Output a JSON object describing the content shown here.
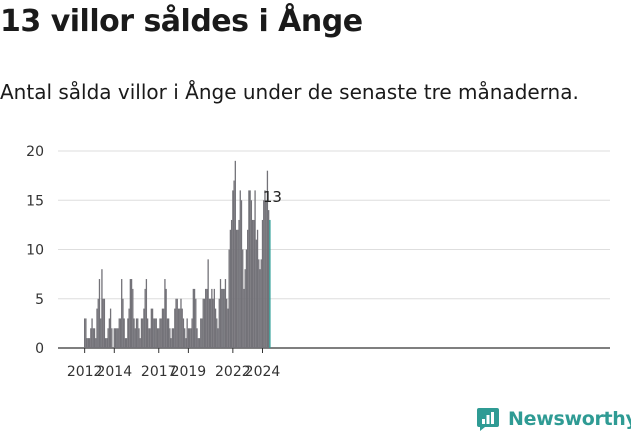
{
  "header": {
    "title": "13 villor såldes i Ånge",
    "subtitle": "Antal sålda villor i Ånge under de senaste tre månaderna."
  },
  "brand": {
    "name": "Newsworthy",
    "icon": "newsworthy-logo-icon"
  },
  "colors": {
    "bar": "#737278",
    "highlight": "#2a9d96",
    "grid": "#dedede",
    "axis": "#333333",
    "brand": "#2f9b94"
  },
  "chart_data": {
    "type": "bar",
    "title": "13 villor såldes i Ånge",
    "subtitle": "Antal sålda villor i Ånge under de senaste tre månaderna.",
    "xlabel": "",
    "ylabel": "",
    "ylim": [
      0,
      20
    ],
    "yticks": [
      0,
      5,
      10,
      15,
      20
    ],
    "xticks": [
      {
        "label": "2012",
        "month": "2012-01"
      },
      {
        "label": "2014",
        "month": "2014-01"
      },
      {
        "label": "2017",
        "month": "2017-01"
      },
      {
        "label": "2019",
        "month": "2019-01"
      },
      {
        "label": "2022",
        "month": "2022-01"
      },
      {
        "label": "2024",
        "month": "2024-01"
      }
    ],
    "grid": true,
    "legend": "none",
    "start_month": "2012-01",
    "values": [
      3,
      3,
      1,
      1,
      1,
      2,
      3,
      2,
      2,
      1,
      4,
      5,
      7,
      3,
      8,
      5,
      5,
      1,
      1,
      2,
      3,
      4,
      2,
      0,
      2,
      2,
      2,
      2,
      3,
      3,
      7,
      5,
      3,
      1,
      1,
      3,
      4,
      7,
      7,
      6,
      3,
      2,
      3,
      3,
      2,
      1,
      3,
      3,
      4,
      6,
      7,
      3,
      2,
      2,
      4,
      4,
      3,
      3,
      3,
      2,
      2,
      3,
      3,
      4,
      4,
      7,
      6,
      3,
      3,
      2,
      1,
      2,
      2,
      4,
      5,
      5,
      4,
      4,
      5,
      4,
      3,
      2,
      1,
      3,
      2,
      2,
      2,
      3,
      6,
      6,
      5,
      2,
      1,
      1,
      3,
      3,
      5,
      5,
      6,
      6,
      9,
      5,
      5,
      6,
      5,
      6,
      4,
      3,
      2,
      5,
      7,
      6,
      6,
      6,
      7,
      5,
      4,
      10,
      12,
      13,
      16,
      17,
      19,
      12,
      12,
      13,
      16,
      15,
      10,
      6,
      8,
      10,
      12,
      16,
      16,
      15,
      13,
      13,
      16,
      11,
      12,
      9,
      8,
      9,
      13,
      15,
      16,
      15,
      18,
      14,
      13
    ],
    "annotation": {
      "label": "13",
      "value": 13,
      "month": "2024-09"
    }
  }
}
